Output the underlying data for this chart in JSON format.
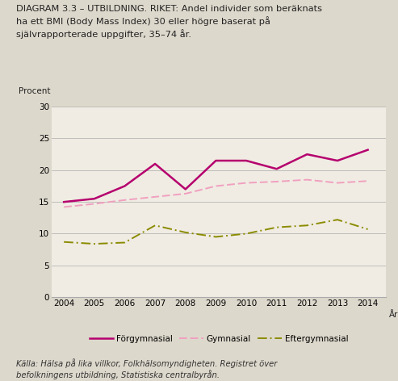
{
  "years": [
    2004,
    2005,
    2006,
    2007,
    2008,
    2009,
    2010,
    2011,
    2012,
    2013,
    2014
  ],
  "forgymnasial": [
    15.0,
    15.5,
    17.5,
    21.0,
    17.0,
    21.5,
    21.5,
    20.2,
    22.5,
    21.5,
    23.2
  ],
  "gymnasial": [
    14.2,
    14.7,
    15.3,
    15.8,
    16.3,
    17.5,
    18.0,
    18.2,
    18.5,
    18.0,
    18.3
  ],
  "eftergymnasial": [
    8.7,
    8.4,
    8.6,
    11.3,
    10.2,
    9.5,
    10.0,
    11.0,
    11.3,
    12.2,
    10.7
  ],
  "title_text": "DIAGRAM 3.3 – UTBILDNING. RIKET: Andel individer som beräknats\nha ett BMI (Body Mass Index) 30 eller högre baserat på\nsjälvrapporterade uppgifter, 35–74 år.",
  "ylabel": "Procent",
  "xlabel": "År",
  "ylim": [
    0,
    30
  ],
  "yticks": [
    0,
    5,
    10,
    15,
    20,
    25,
    30
  ],
  "legend_labels": [
    "Förgymnasial",
    "Gymnasial",
    "Eftergymnasial"
  ],
  "color_forgymnasial": "#b5006e",
  "color_gymnasial": "#f0a0c0",
  "color_eftergymnasial": "#8b8b00",
  "source_text": "Källa: Hälsa på lika villkor, Folkhälsomyndigheten. Registret över\nbefolkningens utbildning, Statistiska centralbyrån.",
  "background_color": "#ddd8cc",
  "plot_bg_color": "#f0ece3"
}
